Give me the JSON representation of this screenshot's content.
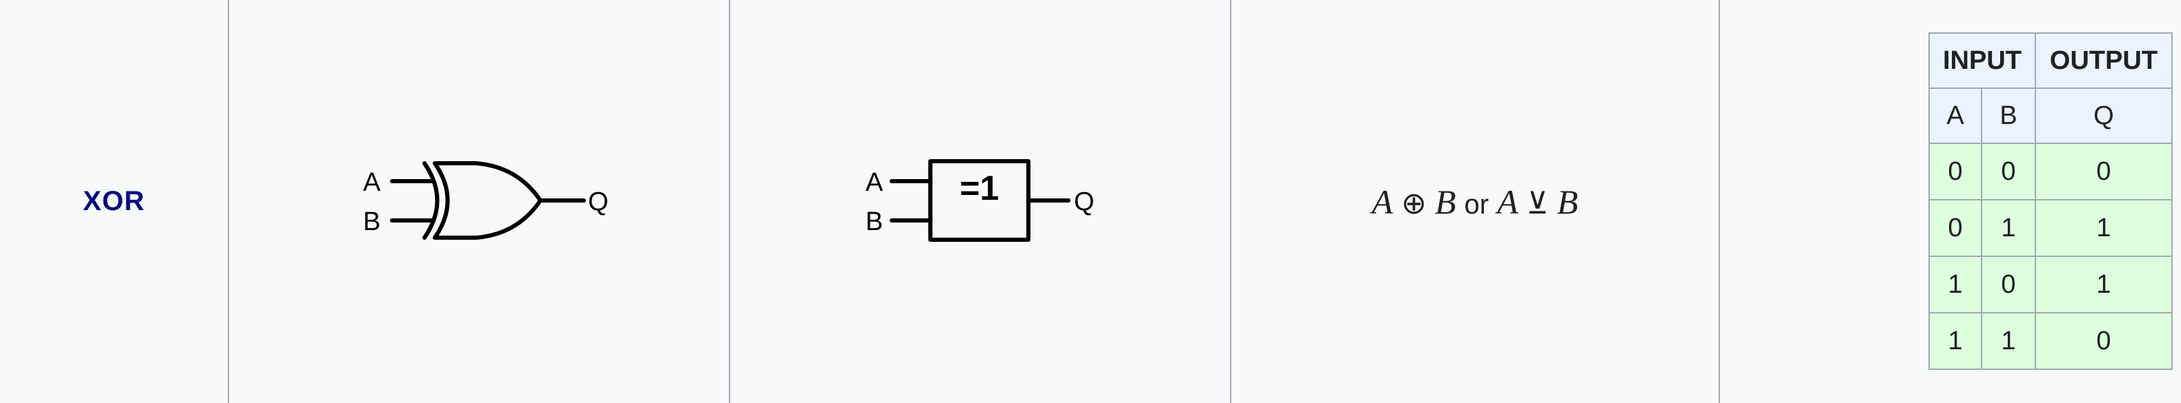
{
  "gate_name": "XOR",
  "ansi_symbol": {
    "input_a": "A",
    "input_b": "B",
    "output": "Q"
  },
  "iec_symbol": {
    "input_a": "A",
    "input_b": "B",
    "output": "Q",
    "box_label": "=1"
  },
  "expression": {
    "var_a": "A",
    "op_xor": "⊕",
    "var_b": "B",
    "connector": "or",
    "var_a2": "A",
    "op_veebar": "⊻",
    "var_b2": "B"
  },
  "truth_table": {
    "input_header": "INPUT",
    "output_header": "OUTPUT",
    "columns": [
      "A",
      "B",
      "Q"
    ],
    "rows": [
      [
        "0",
        "0",
        "0"
      ],
      [
        "0",
        "1",
        "1"
      ],
      [
        "1",
        "0",
        "1"
      ],
      [
        "1",
        "1",
        "0"
      ]
    ]
  }
}
